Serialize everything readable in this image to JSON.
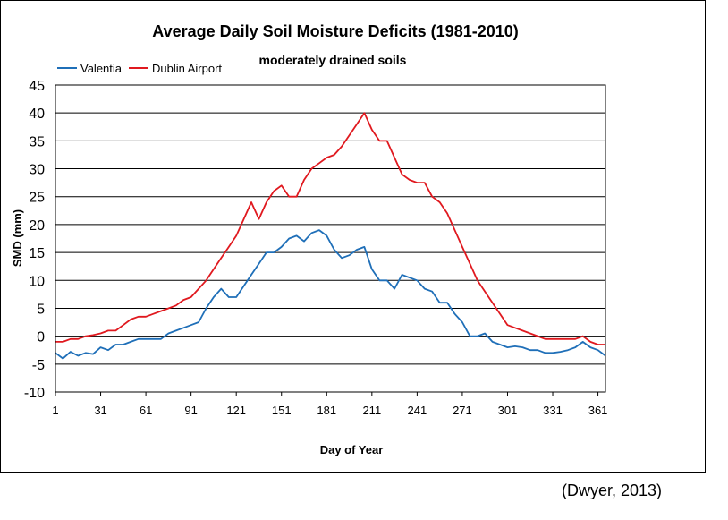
{
  "citation": "(Dwyer, 2013)",
  "chart_data": {
    "type": "line",
    "title": "Average Daily Soil Moisture Deficits (1981-2010)",
    "subtitle": "moderately drained soils",
    "xlabel": "Day of Year",
    "ylabel": "SMD (mm)",
    "xlim": [
      1,
      366
    ],
    "ylim": [
      -10,
      45
    ],
    "xticks": [
      1,
      31,
      61,
      91,
      121,
      151,
      181,
      211,
      241,
      271,
      301,
      331,
      361
    ],
    "yticks": [
      -10,
      -5,
      0,
      5,
      10,
      15,
      20,
      25,
      30,
      35,
      40,
      45
    ],
    "grid": true,
    "legend_position": "top-left",
    "series": [
      {
        "name": "Valentia",
        "color": "#1f6fb8",
        "x": [
          1,
          6,
          11,
          16,
          21,
          26,
          31,
          36,
          41,
          46,
          51,
          56,
          61,
          66,
          71,
          76,
          81,
          86,
          91,
          96,
          101,
          106,
          111,
          116,
          121,
          126,
          131,
          136,
          141,
          146,
          151,
          156,
          161,
          166,
          171,
          176,
          181,
          186,
          191,
          196,
          201,
          206,
          211,
          216,
          221,
          226,
          231,
          236,
          241,
          246,
          251,
          256,
          261,
          266,
          271,
          276,
          281,
          286,
          291,
          296,
          301,
          306,
          311,
          316,
          321,
          326,
          331,
          336,
          341,
          346,
          351,
          356,
          361,
          366
        ],
        "values": [
          -3,
          -4,
          -2.8,
          -3.5,
          -3,
          -3.2,
          -2,
          -2.5,
          -1.5,
          -1.5,
          -1,
          -0.5,
          -0.5,
          -0.5,
          -0.5,
          0.5,
          1,
          1.5,
          2,
          2.5,
          5,
          7,
          8.5,
          7,
          7,
          9,
          11,
          13,
          15,
          15,
          16,
          17.5,
          18,
          17,
          18.5,
          19,
          18,
          15.5,
          14,
          14.5,
          15.5,
          16,
          12,
          10,
          10,
          8.5,
          11,
          10.5,
          10,
          8.5,
          8,
          6,
          6,
          4,
          2.5,
          0,
          0,
          0.5,
          -1,
          -1.5,
          -2,
          -1.8,
          -2,
          -2.5,
          -2.5,
          -3,
          -3,
          -2.8,
          -2.5,
          -2,
          -1,
          -2,
          -2.5,
          -3.5
        ]
      },
      {
        "name": "Dublin Airport",
        "color": "#e0191f",
        "x": [
          1,
          6,
          11,
          16,
          21,
          26,
          31,
          36,
          41,
          46,
          51,
          56,
          61,
          66,
          71,
          76,
          81,
          86,
          91,
          96,
          101,
          106,
          111,
          116,
          121,
          126,
          131,
          136,
          141,
          146,
          151,
          156,
          161,
          166,
          171,
          176,
          181,
          186,
          191,
          196,
          201,
          206,
          211,
          216,
          221,
          226,
          231,
          236,
          241,
          246,
          251,
          256,
          261,
          266,
          271,
          276,
          281,
          286,
          291,
          296,
          301,
          306,
          311,
          316,
          321,
          326,
          331,
          336,
          341,
          346,
          351,
          356,
          361,
          366
        ],
        "values": [
          -1,
          -1,
          -0.5,
          -0.5,
          0,
          0.2,
          0.5,
          1,
          1,
          2,
          3,
          3.5,
          3.5,
          4,
          4.5,
          5,
          5.5,
          6.5,
          7,
          8.5,
          10,
          12,
          14,
          16,
          18,
          21,
          24,
          21,
          24,
          26,
          27,
          25,
          25,
          28,
          30,
          31,
          32,
          32.5,
          34,
          36,
          38,
          40,
          37,
          35,
          35,
          32,
          29,
          28,
          27.5,
          27.5,
          25,
          24,
          22,
          19,
          16,
          13,
          10,
          8,
          6,
          4,
          2,
          1.5,
          1,
          0.5,
          0,
          -0.5,
          -0.5,
          -0.5,
          -0.5,
          -0.5,
          0,
          -1,
          -1.5,
          -1.5
        ]
      }
    ]
  }
}
